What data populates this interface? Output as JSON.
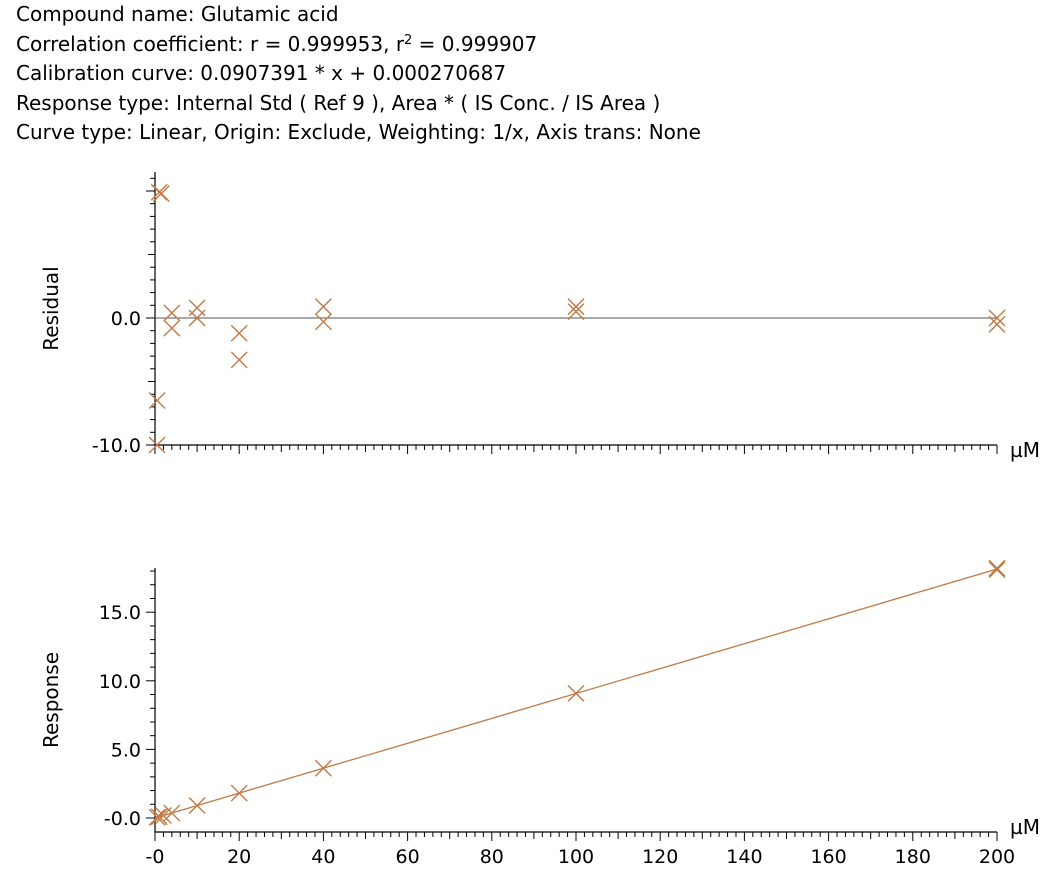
{
  "header": {
    "compound": "Compound name: Glutamic acid",
    "correlation_prefix": "Correlation coefficient: r = 0.999953, r",
    "correlation_sup": "2",
    "correlation_suffix": " = 0.999907",
    "calibration": "Calibration curve: 0.0907391 * x + 0.000270687",
    "response_type": "Response type: Internal Std ( Ref 9 ), Area * ( IS Conc. / IS Area )",
    "curve_type": "Curve type: Linear, Origin: Exclude, Weighting: 1/x, Axis trans: None"
  },
  "colors": {
    "marker": "#c07a46",
    "fit_line": "#c07a46",
    "zero_line": "#555555",
    "axis": "#000000"
  },
  "chart_data": [
    {
      "type": "scatter",
      "title": "",
      "ylabel": "Residual",
      "xunit": "µM",
      "xlim": [
        0,
        200
      ],
      "ylim": [
        -10,
        10
      ],
      "ytick_values": [
        0,
        -10
      ],
      "ytick_labels": [
        "0.0",
        "-10.0"
      ],
      "zero_line": true,
      "points": [
        {
          "x": 0.5,
          "y": -10.0
        },
        {
          "x": 0.5,
          "y": -6.5
        },
        {
          "x": 1.0,
          "y": 9.9
        },
        {
          "x": 1.5,
          "y": 9.8
        },
        {
          "x": 4.0,
          "y": 0.4
        },
        {
          "x": 4.0,
          "y": -0.8
        },
        {
          "x": 10.0,
          "y": 0.8
        },
        {
          "x": 10.0,
          "y": 0.0
        },
        {
          "x": 20.0,
          "y": -1.2
        },
        {
          "x": 20.0,
          "y": -3.3
        },
        {
          "x": 40.0,
          "y": 0.9
        },
        {
          "x": 40.0,
          "y": -0.3
        },
        {
          "x": 100.0,
          "y": 0.9
        },
        {
          "x": 100.0,
          "y": 0.5
        },
        {
          "x": 200.0,
          "y": 0.0
        },
        {
          "x": 200.0,
          "y": -0.5
        }
      ]
    },
    {
      "type": "scatter",
      "title": "",
      "ylabel": "Response",
      "xunit": "µM",
      "xlim": [
        0,
        200
      ],
      "ylim": [
        0,
        18
      ],
      "ytick_values": [
        15,
        10,
        5,
        0
      ],
      "ytick_labels": [
        "15.0",
        "10.0",
        "5.0",
        "-0.0"
      ],
      "xtick_values": [
        0,
        20,
        40,
        60,
        80,
        100,
        120,
        140,
        160,
        180,
        200
      ],
      "xtick_labels": [
        "-0",
        "20",
        "40",
        "60",
        "80",
        "100",
        "120",
        "140",
        "160",
        "180",
        "200"
      ],
      "fit": {
        "slope": 0.0907391,
        "intercept": 0.000270687
      },
      "points": [
        {
          "x": 0.5,
          "y": 0.05
        },
        {
          "x": 1.0,
          "y": 0.09
        },
        {
          "x": 2.0,
          "y": 0.18
        },
        {
          "x": 4.0,
          "y": 0.36
        },
        {
          "x": 10.0,
          "y": 0.91
        },
        {
          "x": 20.0,
          "y": 1.81
        },
        {
          "x": 40.0,
          "y": 3.63
        },
        {
          "x": 100.0,
          "y": 9.08
        },
        {
          "x": 200.0,
          "y": 18.1
        },
        {
          "x": 200.0,
          "y": 18.2
        }
      ]
    }
  ]
}
